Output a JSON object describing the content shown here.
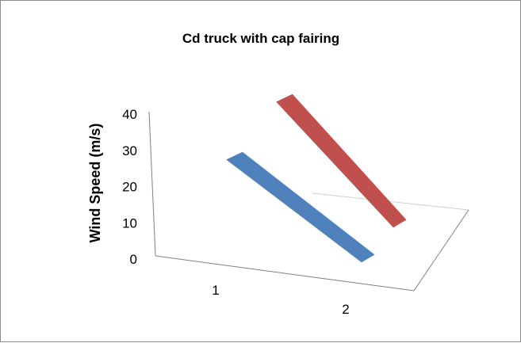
{
  "chart_data": {
    "type": "line",
    "view": "3d-perspective",
    "title": "Cd truck with cap fairing",
    "ylabel": "Wind Speed (m/s)",
    "xlabel": "",
    "categories": [
      "1",
      "2"
    ],
    "y_ticks": [
      "0",
      "10",
      "20",
      "30",
      "40"
    ],
    "ylim": [
      0,
      40
    ],
    "grid": false,
    "legend": "none",
    "series": [
      {
        "values": [
          26,
          4
        ],
        "color": "#4f81bd"
      },
      {
        "values": [
          40,
          10
        ],
        "color": "#c0504d"
      }
    ]
  }
}
